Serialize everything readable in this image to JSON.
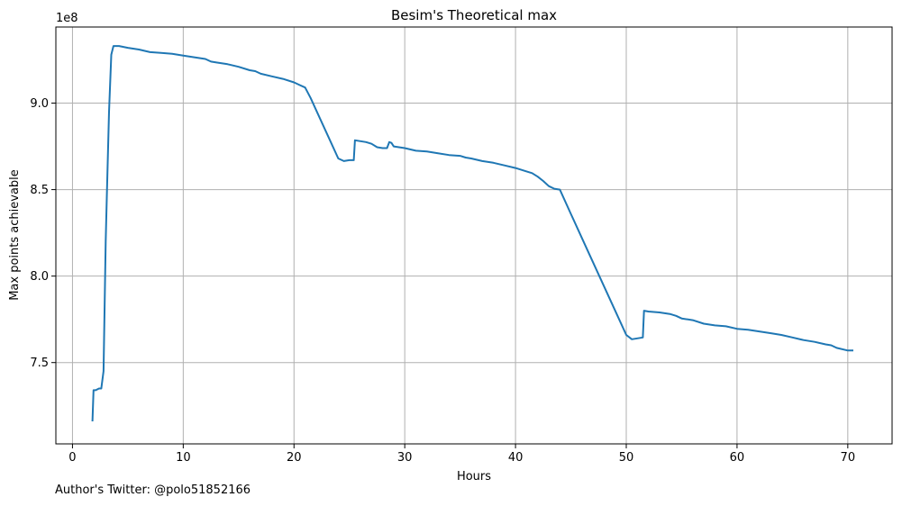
{
  "chart_data": {
    "type": "line",
    "title": "Besim's Theoretical max",
    "xlabel": "Hours",
    "ylabel": "Max points achievable",
    "y_offset_text": "1e8",
    "xlim": [
      -1.5,
      74
    ],
    "ylim": [
      7.03,
      9.44
    ],
    "xticks": [
      0,
      10,
      20,
      30,
      40,
      50,
      60,
      70
    ],
    "xtick_labels": [
      "0",
      "10",
      "20",
      "30",
      "40",
      "50",
      "60",
      "70"
    ],
    "yticks": [
      7.5,
      8.0,
      8.5,
      9.0
    ],
    "ytick_labels": [
      "7.5",
      "8.0",
      "8.5",
      "9.0"
    ],
    "grid": true,
    "series": [
      {
        "color": "#1f77b4",
        "x": [
          1.8,
          1.9,
          2.1,
          2.4,
          2.6,
          2.8,
          3.0,
          3.1,
          3.3,
          3.5,
          3.7,
          3.9,
          4.2,
          5.0,
          6.0,
          7.0,
          8.0,
          9.0,
          10.0,
          11.0,
          12.0,
          12.5,
          13.0,
          14.0,
          15.0,
          16.0,
          16.5,
          17.0,
          18.0,
          19.0,
          20.0,
          20.5,
          21.0,
          21.5,
          22.0,
          23.0,
          24.0,
          24.5,
          25.0,
          25.4,
          25.5,
          26.0,
          26.5,
          27.0,
          27.5,
          28.0,
          28.4,
          28.6,
          28.8,
          29.0,
          30.0,
          31.0,
          32.0,
          33.0,
          34.0,
          35.0,
          35.5,
          36.0,
          37.0,
          38.0,
          39.0,
          40.0,
          41.0,
          41.5,
          42.0,
          42.5,
          43.0,
          43.5,
          44.0,
          45.0,
          46.0,
          47.0,
          48.0,
          49.0,
          50.0,
          50.5,
          51.0,
          51.5,
          51.6,
          52.0,
          53.0,
          54.0,
          54.5,
          55.0,
          56.0,
          57.0,
          58.0,
          59.0,
          60.0,
          61.0,
          62.0,
          63.0,
          64.0,
          65.0,
          66.0,
          67.0,
          68.0,
          68.5,
          69.0,
          70.0,
          70.5
        ],
        "y": [
          7.16,
          7.34,
          7.34,
          7.35,
          7.35,
          7.45,
          8.2,
          8.45,
          8.95,
          9.28,
          9.33,
          9.33,
          9.33,
          9.32,
          9.31,
          9.295,
          9.29,
          9.285,
          9.275,
          9.265,
          9.255,
          9.24,
          9.235,
          9.225,
          9.21,
          9.19,
          9.185,
          9.17,
          9.155,
          9.14,
          9.12,
          9.105,
          9.09,
          9.03,
          8.96,
          8.82,
          8.68,
          8.665,
          8.67,
          8.67,
          8.785,
          8.78,
          8.775,
          8.765,
          8.745,
          8.74,
          8.74,
          8.775,
          8.77,
          8.75,
          8.74,
          8.725,
          8.72,
          8.71,
          8.7,
          8.695,
          8.685,
          8.68,
          8.665,
          8.655,
          8.64,
          8.625,
          8.605,
          8.595,
          8.575,
          8.55,
          8.52,
          8.505,
          8.5,
          8.36,
          8.22,
          8.08,
          7.94,
          7.8,
          7.66,
          7.635,
          7.64,
          7.645,
          7.8,
          7.795,
          7.79,
          7.78,
          7.77,
          7.755,
          7.745,
          7.725,
          7.715,
          7.71,
          7.695,
          7.69,
          7.68,
          7.67,
          7.66,
          7.645,
          7.63,
          7.62,
          7.605,
          7.6,
          7.585,
          7.57,
          7.57
        ]
      }
    ]
  },
  "footnote": "Author's Twitter: @polo51852166"
}
